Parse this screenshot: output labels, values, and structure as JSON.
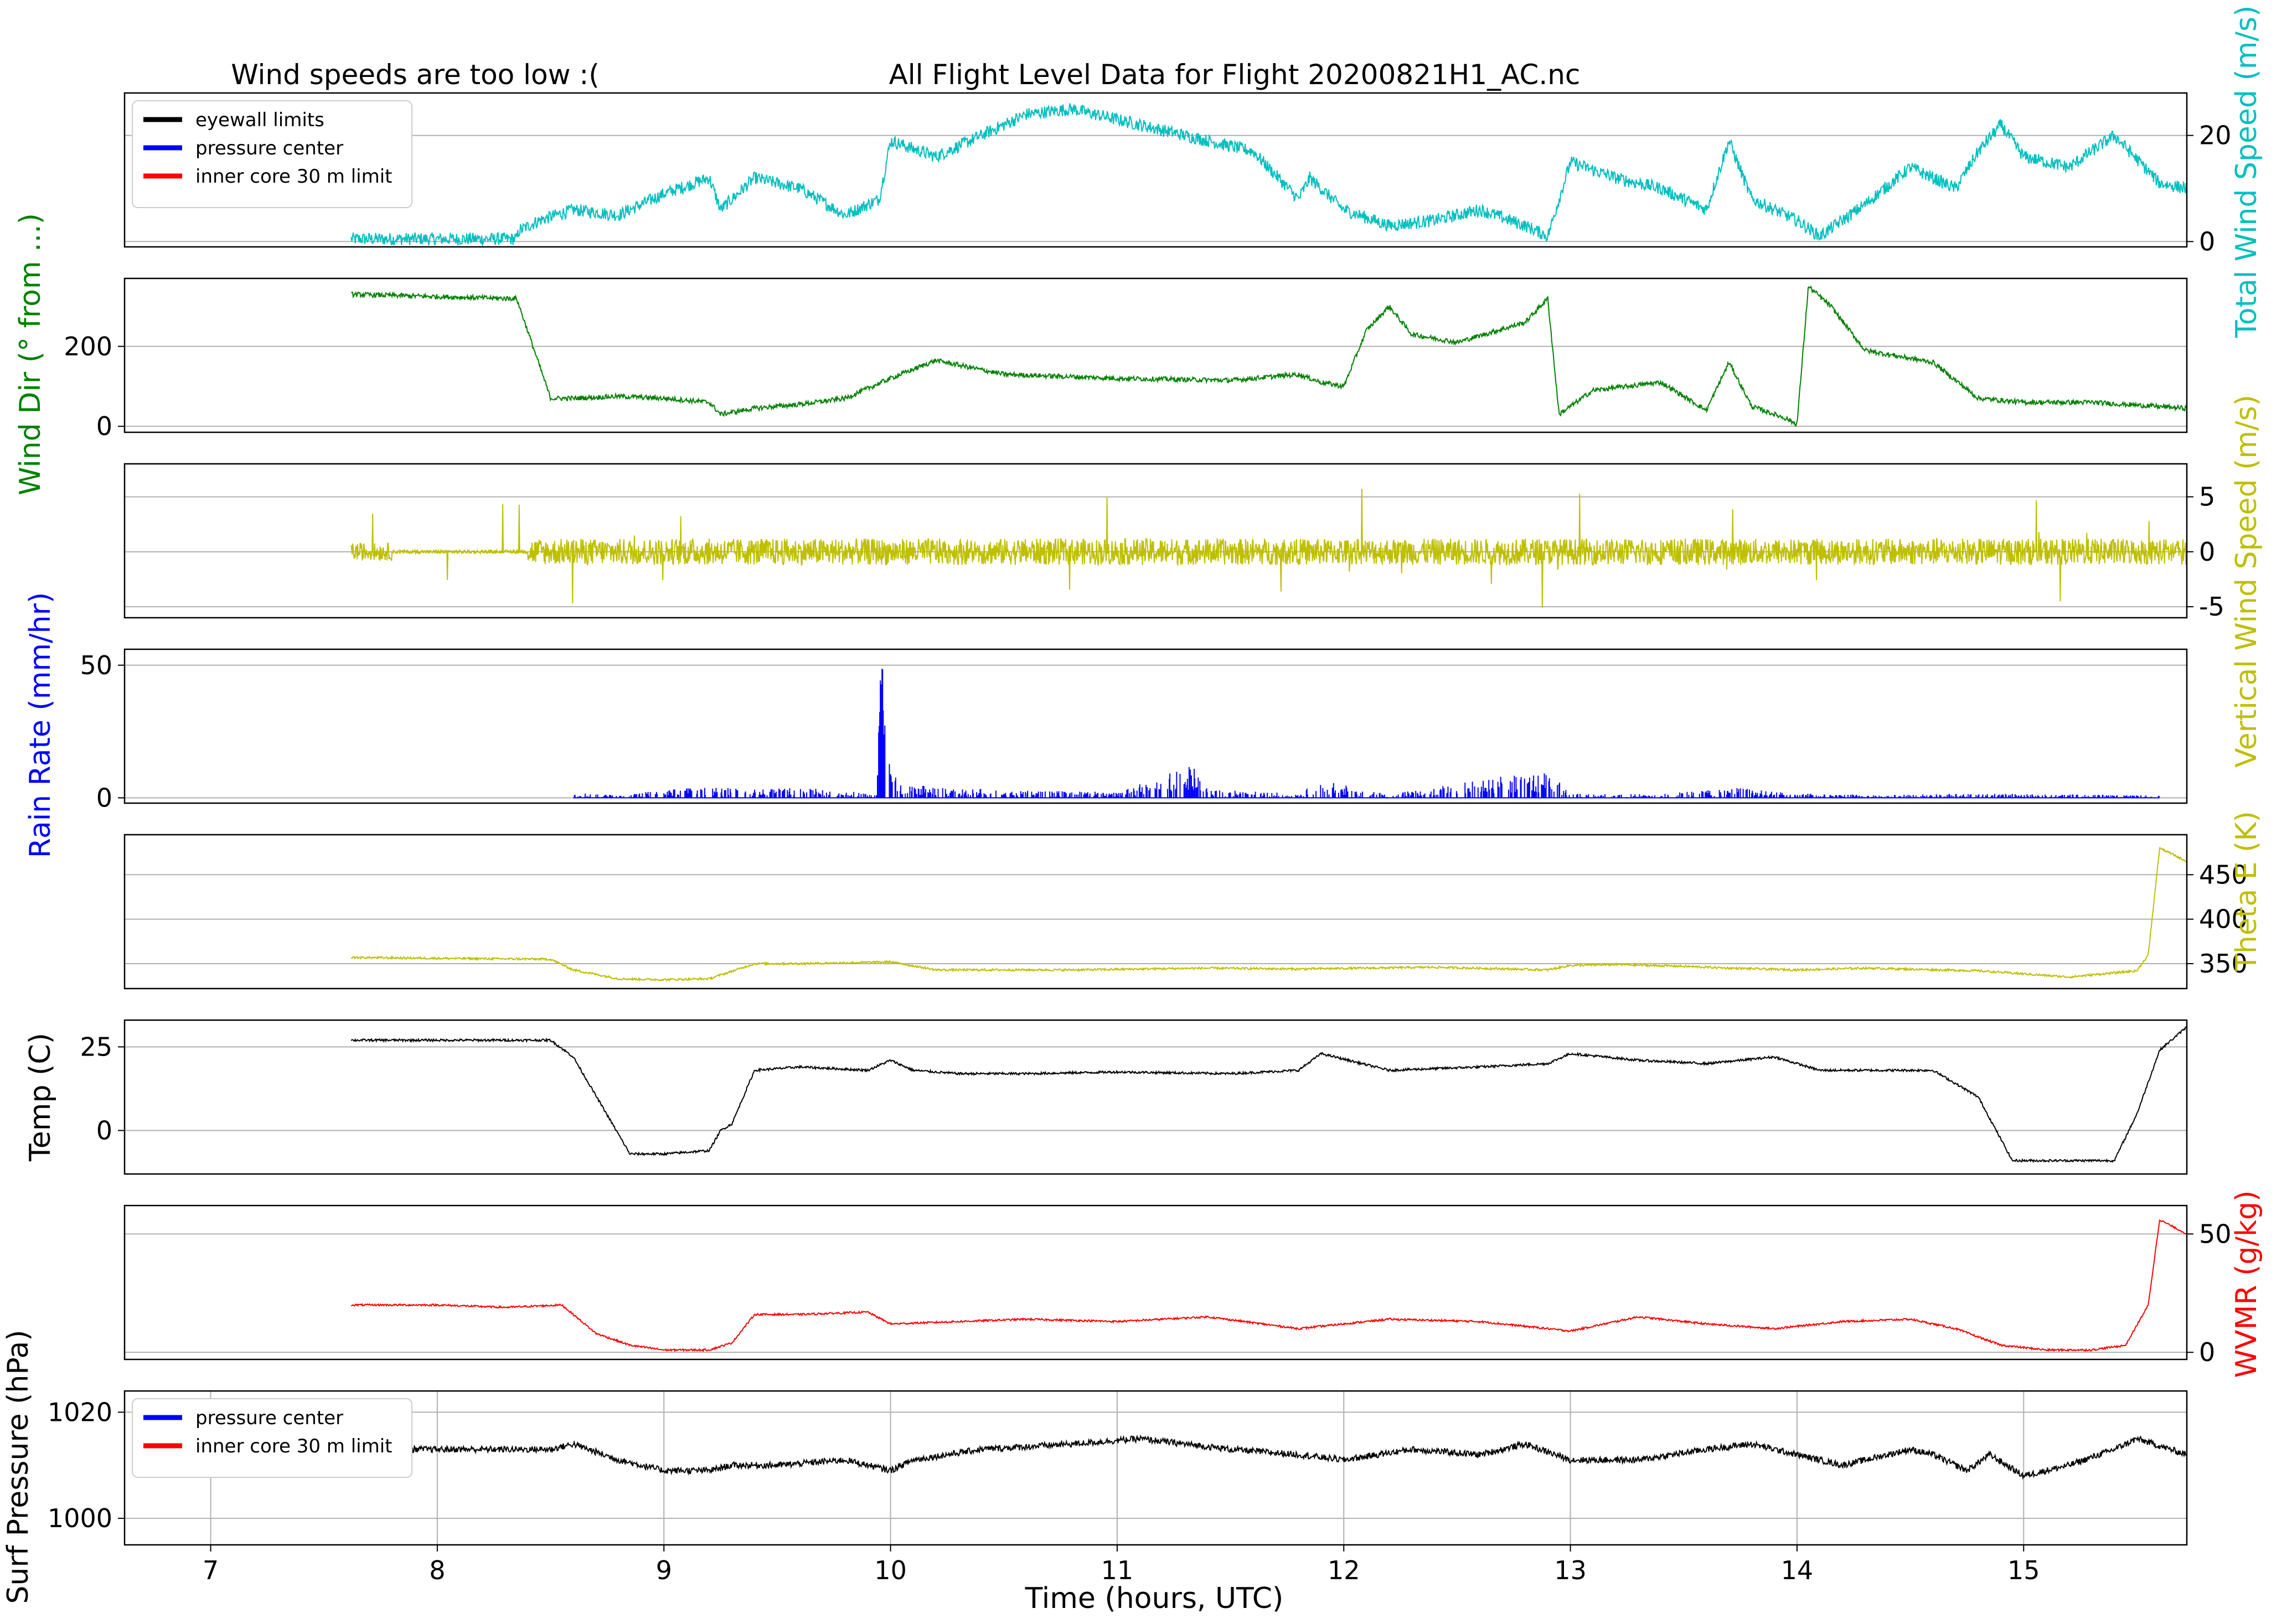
{
  "header": {
    "left_title": "Wind speeds are too low :(",
    "main_title": "All Flight Level Data for Flight 20200821H1_AC.nc"
  },
  "colors": {
    "wind_speed": "#00bfbf",
    "wind_dir": "#008000",
    "vertical": "#bfbf00",
    "rain": "#0000ff",
    "theta": "#bfbf00",
    "temp": "#000000",
    "wvmr": "#ff0000",
    "pressure": "#000000",
    "grid": "#b0b0b0"
  },
  "chart_data": {
    "type": "line",
    "xlabel": "Time (hours, UTC)",
    "xlim": [
      6.62,
      15.72
    ],
    "x_ticks": [
      "7",
      "8",
      "9",
      "10",
      "11",
      "12",
      "13",
      "14",
      "15"
    ],
    "panels": [
      {
        "id": "wind_speed",
        "ylabel": "Total Wind Speed (m/s)",
        "ylabel_side": "right",
        "ylim": [
          -1,
          28
        ],
        "yticks": [
          "0",
          "20"
        ],
        "color_key": "wind_speed",
        "legend": [
          "eyewall limits",
          "pressure center",
          "inner core 30 m limit"
        ],
        "legend_colors": [
          "#000000",
          "#0000ff",
          "#ff0000"
        ],
        "noise": 1.2,
        "x": [
          7.62,
          8.35,
          8.36,
          8.45,
          8.6,
          8.8,
          9.0,
          9.2,
          9.25,
          9.4,
          9.6,
          9.8,
          9.95,
          10.0,
          10.2,
          10.4,
          10.6,
          10.8,
          11.0,
          11.2,
          11.4,
          11.6,
          11.8,
          11.85,
          12.0,
          12.2,
          12.4,
          12.6,
          12.8,
          12.9,
          13.0,
          13.2,
          13.4,
          13.6,
          13.7,
          13.8,
          14.0,
          14.1,
          14.3,
          14.5,
          14.7,
          14.8,
          14.9,
          15.0,
          15.2,
          15.4,
          15.6,
          15.72
        ],
        "y": [
          0.5,
          0.5,
          2,
          4,
          6,
          5,
          9,
          12,
          6,
          12,
          10,
          5,
          8,
          19,
          16,
          20,
          24,
          25,
          23,
          21,
          19,
          17,
          8,
          12,
          6,
          3,
          4,
          6,
          3,
          1,
          15,
          12,
          10,
          6,
          19,
          8,
          4,
          1,
          7,
          14,
          10,
          17,
          22,
          16,
          14,
          20,
          11,
          10
        ]
      },
      {
        "id": "wind_dir",
        "ylabel": "Wind Dir (° from ...)",
        "ylabel_side": "left",
        "ylim": [
          -15,
          370
        ],
        "yticks": [
          "0",
          "200"
        ],
        "color_key": "wind_dir",
        "noise": 6,
        "x": [
          7.62,
          8.3,
          8.35,
          8.5,
          8.6,
          8.8,
          9.0,
          9.2,
          9.25,
          9.4,
          9.6,
          9.8,
          10.0,
          10.2,
          10.5,
          11.0,
          11.5,
          11.8,
          11.9,
          12.0,
          12.1,
          12.2,
          12.3,
          12.5,
          12.8,
          12.9,
          12.95,
          13.1,
          13.4,
          13.6,
          13.7,
          13.8,
          13.95,
          14.0,
          14.05,
          14.15,
          14.3,
          14.6,
          14.8,
          15.0,
          15.3,
          15.72
        ],
        "y": [
          330,
          320,
          320,
          70,
          70,
          75,
          70,
          60,
          30,
          45,
          55,
          70,
          120,
          165,
          130,
          120,
          115,
          130,
          110,
          100,
          240,
          300,
          230,
          210,
          260,
          320,
          30,
          90,
          110,
          40,
          160,
          50,
          20,
          5,
          350,
          300,
          190,
          160,
          70,
          60,
          60,
          45
        ]
      },
      {
        "id": "vertical",
        "ylabel": "Vertical Wind Speed (m/s)",
        "ylabel_side": "right",
        "ylim": [
          -6,
          8
        ],
        "yticks": [
          "-5",
          "0",
          "5"
        ],
        "color_key": "vertical",
        "noise": 1.6,
        "x": [
          7.62,
          7.8,
          8.0,
          8.4,
          8.6,
          9.0,
          9.5,
          10.0,
          10.5,
          11.0,
          11.5,
          12.0,
          12.5,
          13.0,
          13.5,
          14.0,
          14.5,
          15.0,
          15.5,
          15.72
        ],
        "y": [
          0,
          0,
          0,
          0,
          0,
          0,
          0,
          0,
          0,
          0,
          0,
          0,
          0,
          0,
          0,
          0,
          0,
          0,
          0,
          0
        ]
      },
      {
        "id": "rain",
        "ylabel": "Rain Rate (mm/hr)",
        "ylabel_side": "left",
        "ylim": [
          -2,
          56
        ],
        "yticks": [
          "0",
          "50"
        ],
        "color_key": "rain",
        "noise": 0,
        "x": [
          8.6,
          8.8,
          9.0,
          9.2,
          9.4,
          9.6,
          9.8,
          9.94,
          9.96,
          9.98,
          10.0,
          10.05,
          10.2,
          10.6,
          11.0,
          11.37,
          11.4,
          11.8,
          11.9,
          12.2,
          12.9,
          13.0,
          13.4,
          13.7,
          14.0,
          14.4,
          14.8,
          15.2,
          15.4,
          15.6
        ],
        "y": [
          0.8,
          0.3,
          1.2,
          1.5,
          1.2,
          1.4,
          1,
          0.5,
          37,
          20,
          4,
          2,
          1.5,
          1,
          0.8,
          5,
          1.2,
          0.6,
          2.5,
          0.5,
          4,
          0.6,
          0.5,
          1.5,
          0.6,
          0.4,
          0.6,
          0.5,
          0.4,
          0.3
        ]
      },
      {
        "id": "theta",
        "ylabel": "Theta E (K)",
        "ylabel_side": "right",
        "ylim": [
          322,
          495
        ],
        "yticks": [
          "350",
          "400",
          "450"
        ],
        "color_key": "theta",
        "noise": 1.2,
        "x": [
          7.62,
          8.0,
          8.5,
          8.6,
          8.8,
          9.0,
          9.2,
          9.4,
          9.6,
          10.0,
          10.2,
          10.8,
          11.4,
          11.8,
          12.4,
          12.9,
          13.0,
          13.2,
          13.5,
          13.7,
          14.0,
          14.3,
          14.8,
          15.2,
          15.5,
          15.55,
          15.6,
          15.72
        ],
        "y": [
          357,
          356,
          355,
          343,
          333,
          332,
          333,
          350,
          350,
          352,
          343,
          343,
          345,
          344,
          346,
          343,
          348,
          349,
          347,
          345,
          343,
          345,
          342,
          335,
          342,
          360,
          480,
          465
        ]
      },
      {
        "id": "temp",
        "ylabel": "Temp (C)",
        "ylabel_side": "left",
        "ylim": [
          -13,
          33
        ],
        "yticks": [
          "0",
          "25"
        ],
        "color_key": "temp",
        "noise": 0.35,
        "x": [
          7.62,
          8.0,
          8.5,
          8.6,
          8.85,
          9.0,
          9.2,
          9.25,
          9.3,
          9.4,
          9.6,
          9.9,
          10.0,
          10.1,
          10.3,
          10.6,
          11.0,
          11.5,
          11.8,
          11.9,
          12.2,
          12.6,
          12.9,
          13.0,
          13.3,
          13.6,
          13.9,
          14.1,
          14.4,
          14.6,
          14.8,
          14.95,
          15.1,
          15.3,
          15.4,
          15.5,
          15.6,
          15.72
        ],
        "y": [
          27,
          27,
          27,
          22,
          -7,
          -7,
          -6,
          0,
          2,
          18,
          19,
          18,
          21,
          18,
          17,
          17,
          17.5,
          17,
          18,
          23,
          18,
          19,
          20,
          23,
          21,
          20,
          22,
          18,
          18,
          18,
          10,
          -9,
          -9,
          -9,
          -9,
          5,
          24,
          31
        ]
      },
      {
        "id": "wvmr",
        "ylabel": "WVMR (g/kg)",
        "ylabel_side": "right",
        "ylim": [
          -3,
          62
        ],
        "yticks": [
          "0",
          "50"
        ],
        "color_key": "wvmr",
        "noise": 0.4,
        "x": [
          7.62,
          8.0,
          8.3,
          8.55,
          8.7,
          8.85,
          9.0,
          9.2,
          9.3,
          9.4,
          9.6,
          9.9,
          10.0,
          10.3,
          10.6,
          11.0,
          11.4,
          11.8,
          12.2,
          12.6,
          13.0,
          13.3,
          13.6,
          13.9,
          14.2,
          14.5,
          14.7,
          14.9,
          15.1,
          15.3,
          15.45,
          15.55,
          15.6,
          15.72
        ],
        "y": [
          20,
          20,
          19,
          20,
          8,
          3,
          1,
          1,
          4,
          16,
          16,
          17,
          12,
          13,
          14,
          13,
          15,
          10,
          14,
          13,
          9,
          15,
          12,
          10,
          13,
          14,
          10,
          3,
          1,
          1,
          3,
          20,
          56,
          50
        ]
      },
      {
        "id": "pressure",
        "ylabel": "Surf Pressure (hPa)",
        "ylabel_side": "left",
        "ylim": [
          995,
          1024
        ],
        "yticks": [
          "1000",
          "1020"
        ],
        "color_key": "pressure",
        "legend": [
          "pressure center",
          "inner core 30 m limit"
        ],
        "legend_colors": [
          "#0000ff",
          "#ff0000"
        ],
        "noise": 0.6,
        "x": [
          7.62,
          8.0,
          8.5,
          8.6,
          8.8,
          9.0,
          9.2,
          9.3,
          9.5,
          9.8,
          10.0,
          10.1,
          10.4,
          10.8,
          11.1,
          11.5,
          11.8,
          12.0,
          12.3,
          12.6,
          12.8,
          13.0,
          13.3,
          13.6,
          13.8,
          14.0,
          14.2,
          14.5,
          14.6,
          14.75,
          14.85,
          15.0,
          15.2,
          15.4,
          15.5,
          15.72
        ],
        "y": [
          1013,
          1013,
          1013,
          1014,
          1011,
          1009,
          1009,
          1010,
          1010,
          1011,
          1009,
          1011,
          1013,
          1014,
          1015,
          1013,
          1012,
          1011,
          1013,
          1012,
          1014,
          1011,
          1011,
          1013,
          1014,
          1012,
          1010,
          1013,
          1012,
          1009,
          1012,
          1008,
          1010,
          1013,
          1015,
          1012
        ]
      }
    ]
  }
}
